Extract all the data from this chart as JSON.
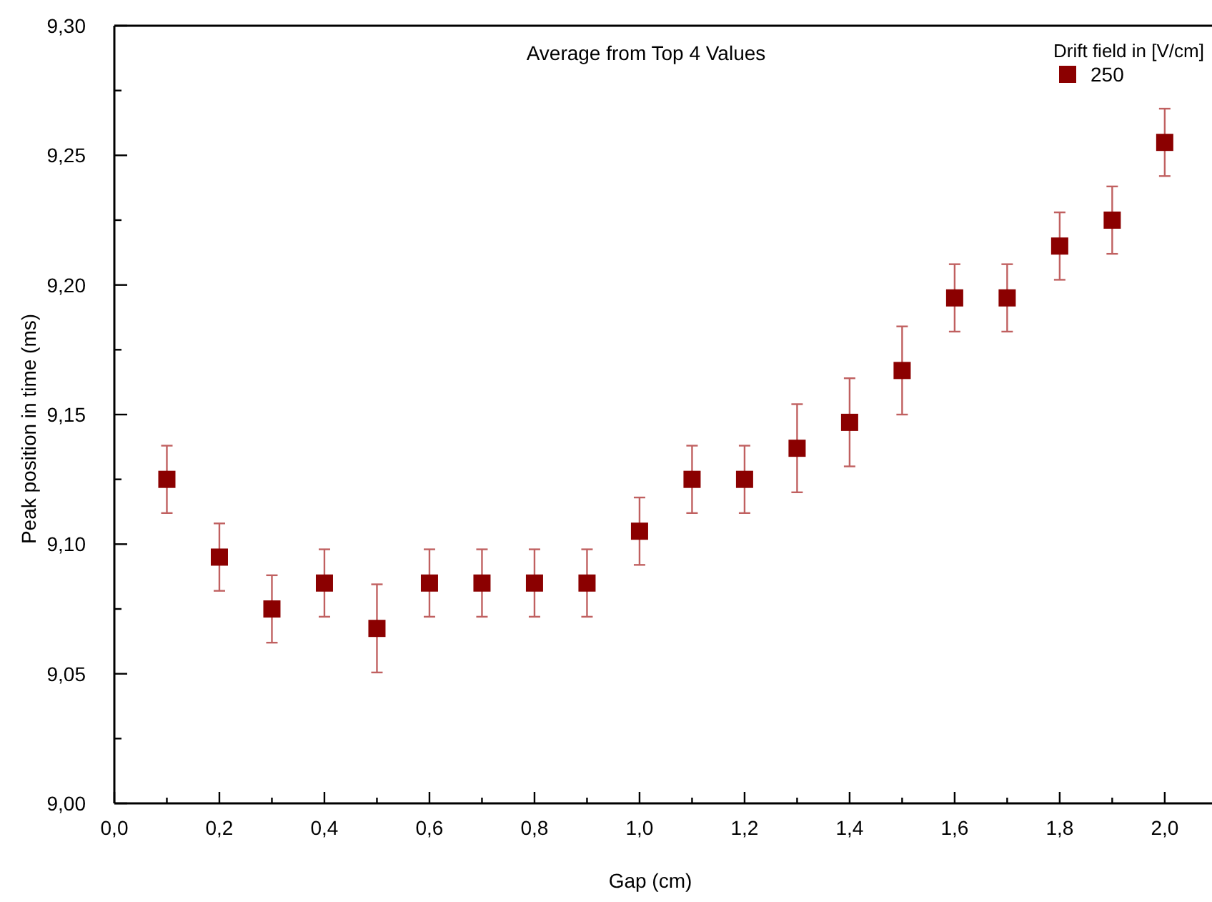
{
  "chart_data": {
    "type": "scatter",
    "title": "Average from Top 4 Values",
    "xlabel": "Gap (cm)",
    "ylabel": "Peak position in time (ms)",
    "legend_title": "Drift field in [V/cm]",
    "legend": "top right",
    "marker": "square",
    "grid": false,
    "x": [
      0.1,
      0.2,
      0.3,
      0.4,
      0.5,
      0.6,
      0.7,
      0.8,
      0.9,
      1.0,
      1.1,
      1.2,
      1.3,
      1.4,
      1.5,
      1.6,
      1.7,
      1.8,
      1.9,
      2.0
    ],
    "series": [
      {
        "name": "250",
        "color": "#8b0000",
        "values": [
          9.125,
          9.095,
          9.075,
          9.085,
          9.0675,
          9.085,
          9.085,
          9.085,
          9.085,
          9.105,
          9.125,
          9.125,
          9.137,
          9.147,
          9.167,
          9.195,
          9.195,
          9.215,
          9.225,
          9.255
        ],
        "errors": [
          0.013,
          0.013,
          0.013,
          0.013,
          0.017,
          0.013,
          0.013,
          0.013,
          0.013,
          0.013,
          0.013,
          0.013,
          0.017,
          0.017,
          0.017,
          0.013,
          0.013,
          0.013,
          0.013,
          0.013
        ]
      }
    ],
    "xlim": [
      0,
      2.09
    ],
    "xticks": [
      {
        "value": 0,
        "label": "0,0"
      },
      {
        "value": 0.1,
        "label": null
      },
      {
        "value": 0.2,
        "label": "0,2"
      },
      {
        "value": 0.3,
        "label": null
      },
      {
        "value": 0.4,
        "label": "0,4"
      },
      {
        "value": 0.5,
        "label": null
      },
      {
        "value": 0.6,
        "label": "0,6"
      },
      {
        "value": 0.7,
        "label": null
      },
      {
        "value": 0.8,
        "label": "0,8"
      },
      {
        "value": 0.9,
        "label": null
      },
      {
        "value": 1.0,
        "label": "1,0"
      },
      {
        "value": 1.1,
        "label": null
      },
      {
        "value": 1.2,
        "label": "1,2"
      },
      {
        "value": 1.3,
        "label": null
      },
      {
        "value": 1.4,
        "label": "1,4"
      },
      {
        "value": 1.5,
        "label": null
      },
      {
        "value": 1.6,
        "label": "1,6"
      },
      {
        "value": 1.7,
        "label": null
      },
      {
        "value": 1.8,
        "label": "1,8"
      },
      {
        "value": 1.9,
        "label": null
      },
      {
        "value": 2.0,
        "label": "2,0"
      }
    ],
    "ylim": [
      9.0,
      9.3
    ],
    "yticks": [
      {
        "value": 9.0,
        "label": "9,00"
      },
      {
        "value": 9.025,
        "label": null
      },
      {
        "value": 9.05,
        "label": "9,05"
      },
      {
        "value": 9.075,
        "label": null
      },
      {
        "value": 9.1,
        "label": "9,10"
      },
      {
        "value": 9.125,
        "label": null
      },
      {
        "value": 9.15,
        "label": "9,15"
      },
      {
        "value": 9.175,
        "label": null
      },
      {
        "value": 9.2,
        "label": "9,20"
      },
      {
        "value": 9.225,
        "label": null
      },
      {
        "value": 9.25,
        "label": "9,25"
      },
      {
        "value": 9.275,
        "label": null
      },
      {
        "value": 9.3,
        "label": "9,30"
      }
    ]
  }
}
